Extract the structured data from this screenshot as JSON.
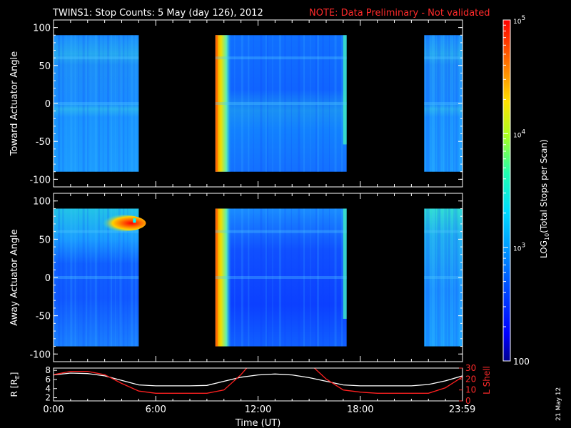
{
  "header": {
    "title": "TWINS1: Stop Counts:  5 May (day 126), 2012",
    "note": "NOTE: Data Preliminary - Not validated"
  },
  "side_stamp": "21 May 12",
  "chart_data": [
    {
      "type": "heatmap",
      "ylabel": "Toward Actuator Angle",
      "ylim": [
        -110,
        110
      ],
      "y_ticks": [
        "100",
        "50",
        "0",
        "-50",
        "-100"
      ],
      "y_tick_values": [
        100,
        50,
        0,
        -50,
        -100
      ],
      "xlim": [
        0,
        24
      ],
      "data_intervals_hours": [
        [
          0,
          5.0
        ],
        [
          9.5,
          17.2
        ],
        [
          21.75,
          24
        ]
      ],
      "angle_range": [
        -90,
        90
      ],
      "dominant_level": "~1e3 (cyan-blue)"
    },
    {
      "type": "heatmap",
      "ylabel": "Away Actuator Angle",
      "ylim": [
        -110,
        110
      ],
      "y_ticks": [
        "100",
        "50",
        "0",
        "-50",
        "-100"
      ],
      "y_tick_values": [
        100,
        50,
        0,
        -50,
        -100
      ],
      "xlim": [
        0,
        24
      ],
      "data_intervals_hours": [
        [
          0,
          5.0
        ],
        [
          9.5,
          17.2
        ],
        [
          21.75,
          24
        ]
      ],
      "angle_range": [
        -90,
        90
      ],
      "hot_spot": {
        "time_hours": [
          3.0,
          5.0
        ],
        "angle": [
          62,
          80
        ],
        "level": "~5e4 (red)"
      }
    },
    {
      "type": "line",
      "ylabel": "R [R",
      "ylabel_sub": "E",
      "ylabel_end": "]",
      "y_ticks": [
        "8",
        "6",
        "4",
        "2"
      ],
      "y_tick_values": [
        8,
        6,
        4,
        2
      ],
      "ylim": [
        1.3,
        8.5
      ],
      "y2label": "L Shell",
      "y2_ticks": [
        "30",
        "20",
        "10",
        "0"
      ],
      "y2_tick_values": [
        30,
        20,
        10,
        0
      ],
      "y2lim": [
        0,
        30
      ],
      "x_ticks": [
        "0:00",
        "6:00",
        "12:00",
        "18:00",
        "23:59"
      ],
      "x_tick_values": [
        0,
        6,
        12,
        18,
        23.983
      ],
      "xlabel": "Time (UT)",
      "series": [
        {
          "name": "R",
          "color": "#ffffff",
          "x": [
            0,
            1,
            2,
            3,
            4,
            5,
            6,
            7,
            8,
            9,
            10,
            11,
            12,
            13,
            14,
            15,
            16,
            17,
            18,
            19,
            20,
            21,
            22,
            23,
            24
          ],
          "y": [
            7.0,
            7.4,
            7.3,
            6.8,
            5.8,
            4.8,
            4.6,
            4.6,
            4.6,
            4.7,
            5.6,
            6.5,
            7.0,
            7.2,
            7.0,
            6.4,
            5.6,
            4.8,
            4.6,
            4.6,
            4.6,
            4.6,
            4.9,
            5.7,
            6.8
          ]
        },
        {
          "name": "L Shell",
          "color": "#ff2020",
          "axis": "right",
          "x": [
            0,
            1,
            2,
            3,
            4,
            5,
            6,
            7,
            8,
            9,
            10,
            11,
            11.5,
            15.1,
            16,
            17,
            18,
            19,
            20,
            21,
            22,
            23,
            24
          ],
          "y": [
            24,
            27,
            27,
            24,
            16,
            9,
            7,
            7,
            7,
            7,
            10,
            24,
            33,
            33,
            20,
            10,
            8,
            7,
            7,
            7,
            7,
            12,
            22
          ]
        }
      ]
    }
  ],
  "colorbar": {
    "label": "LOG",
    "label_sub": "10",
    "label_rest": "(Total Stops per Scan)",
    "scale": "log",
    "range": [
      100,
      100000
    ],
    "ticks": [
      {
        "base": "10",
        "exp": "5",
        "value": 100000
      },
      {
        "base": "10",
        "exp": "4",
        "value": 10000
      },
      {
        "base": "10",
        "exp": "3",
        "value": 1000
      },
      {
        "base": "100",
        "exp": "",
        "value": 100
      }
    ],
    "colors": [
      "#000090",
      "#0000ff",
      "#0060ff",
      "#00b4ff",
      "#00e8e8",
      "#30ff90",
      "#c8ff00",
      "#ffd000",
      "#ff7000",
      "#ff0000"
    ]
  }
}
